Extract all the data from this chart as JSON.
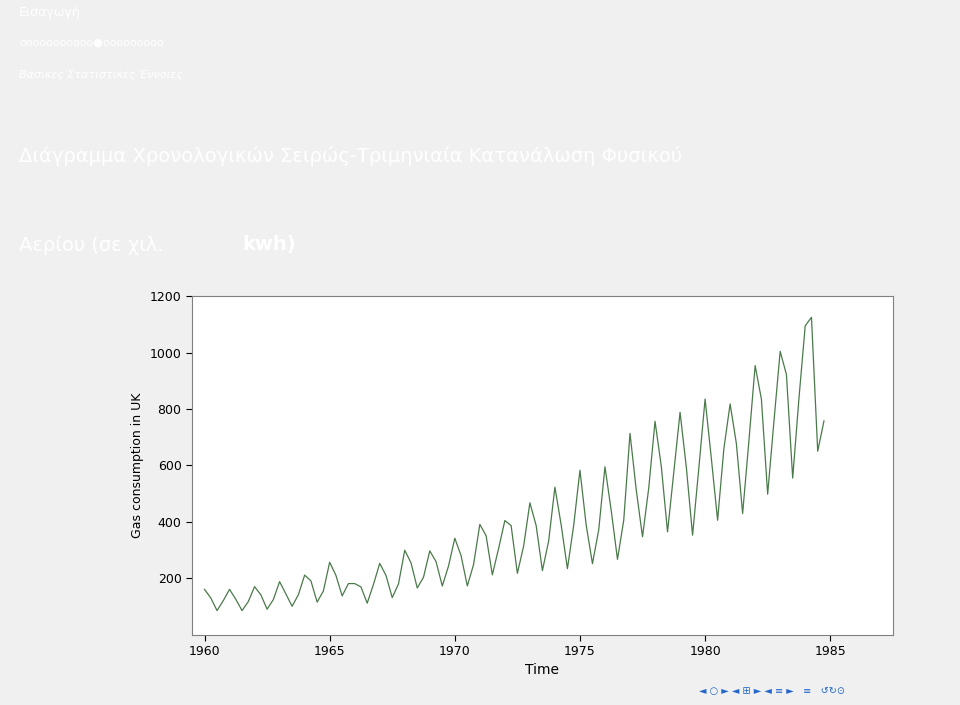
{
  "header_text1": "Εισαγωγή",
  "header_text2": "οοοοοοοοοοο●οοοοοοοοο",
  "header_text3": "Βασικές Στατιστικές Έννοιες",
  "subtitle_line1": "Διάγραμμα Χρονολογικών Σειρώς-Τριμηνιαία Κατανάλωση Φυσικού",
  "subtitle_line2a": "Αερίου (σε χιλ. ",
  "subtitle_line2b": "kwh)",
  "ylabel": "Gas consumption in UK",
  "xlabel": "Time",
  "line_color": "#4a7a4a",
  "header_bg": "#1a1aff",
  "fig_bg": "#f0f0f0",
  "plot_bg": "#ffffff",
  "ylim": [
    0,
    1200
  ],
  "yticks": [
    200,
    400,
    600,
    800,
    1000,
    1200
  ],
  "xticks": [
    1960,
    1965,
    1970,
    1975,
    1980,
    1985
  ],
  "UKgas": [
    160.1,
    129.7,
    84.8,
    120.1,
    160.1,
    124.9,
    84.8,
    116.9,
    169.7,
    140.9,
    89.7,
    123.7,
    187.5,
    144.1,
    100.0,
    141.0,
    210.6,
    190.4,
    115.0,
    154.5,
    256.3,
    209.7,
    136.9,
    180.6,
    180.6,
    168.8,
    111.1,
    177.7,
    252.2,
    209.6,
    130.8,
    179.1,
    298.7,
    254.2,
    165.1,
    203.2,
    296.6,
    258.6,
    171.9,
    243.0,
    341.4,
    279.9,
    172.3,
    248.2,
    390.5,
    350.6,
    211.5,
    305.2,
    404.1,
    386.3,
    217.0,
    313.5,
    466.9,
    386.5,
    226.5,
    331.7,
    522.4,
    388.5,
    233.4,
    387.0,
    582.5,
    387.5,
    251.1,
    371.0,
    594.8,
    439.3,
    266.4,
    405.5,
    713.4,
    512.2,
    346.5,
    520.4,
    755.9,
    596.4,
    364.0,
    575.8,
    787.9,
    593.6,
    352.3,
    590.4,
    834.9,
    624.3,
    405.3,
    658.4,
    817.7,
    677.1,
    429.0,
    686.0,
    953.6,
    834.7,
    497.5,
    755.0,
    1004.2,
    921.9,
    554.8,
    837.0,
    1094.5,
    1124.9,
    650.1,
    757.4
  ]
}
